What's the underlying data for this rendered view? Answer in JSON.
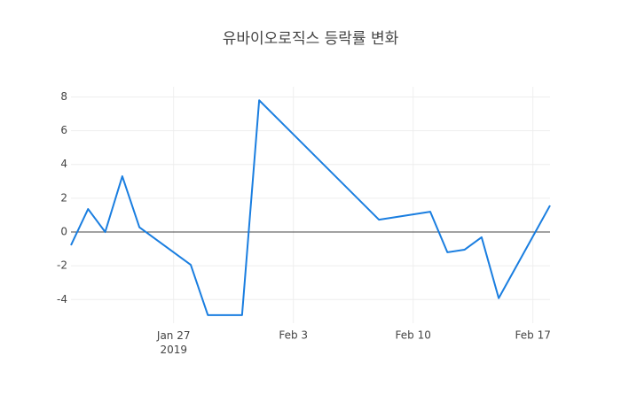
{
  "chart_data": {
    "type": "line",
    "title": "유바이오로직스 등락률 변화",
    "x": [
      "2019-01-21",
      "2019-01-22",
      "2019-01-23",
      "2019-01-24",
      "2019-01-25",
      "2019-01-28",
      "2019-01-29",
      "2019-01-31",
      "2019-02-01",
      "2019-02-08",
      "2019-02-11",
      "2019-02-12",
      "2019-02-13",
      "2019-02-14",
      "2019-02-15",
      "2019-02-18"
    ],
    "series": [
      {
        "color": "#1a7ee0",
        "values": [
          -0.78,
          1.36,
          0,
          3.3,
          0.28,
          -1.94,
          -4.92,
          -4.92,
          7.8,
          0.73,
          1.2,
          -1.2,
          -1.05,
          -0.31,
          -3.92,
          1.57
        ]
      }
    ],
    "xlim": [
      "2019-01-21",
      "2019-02-18"
    ],
    "xticks": [
      {
        "value": "2019-01-27",
        "label": "Jan 27\n2019"
      },
      {
        "value": "2019-02-03",
        "label": "Feb 3"
      },
      {
        "value": "2019-02-10",
        "label": "Feb 10"
      },
      {
        "value": "2019-02-17",
        "label": "Feb 17"
      }
    ],
    "ylim": [
      -5.4,
      8.6
    ],
    "yticks": [
      -4,
      -2,
      0,
      2,
      4,
      6,
      8
    ],
    "grid": true,
    "zeroline": true
  }
}
